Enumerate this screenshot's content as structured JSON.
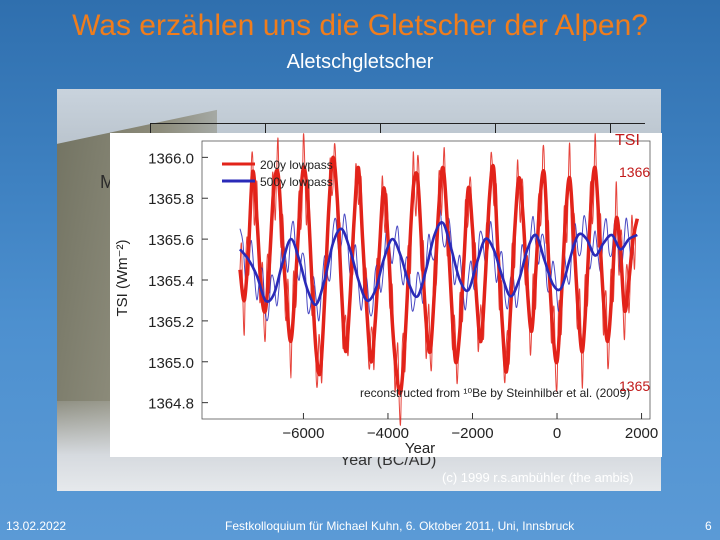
{
  "slide": {
    "title": "Was erzählen uns die Gletscher der Alpen?",
    "subtitle": "Aletschgletscher",
    "footer_left": "13.02.2022",
    "footer_center": "Festkolloquium für Michael Kuhn, 6. Oktober 2011, Uni, Innsbruck",
    "footer_right": "6",
    "photo_credit": "(c) 1999 r.s.ambühler (the ambis)",
    "background_axis_label": "Year (BC/AD)",
    "background_letter": "M"
  },
  "colors": {
    "title": "#f07d1c",
    "red_series": "#e2231a",
    "blue_series": "#2a2ab8",
    "right_axis": "#c21a1a"
  },
  "chart_data": {
    "type": "line",
    "title": "",
    "xlabel": "Year",
    "ylabel": "TSI (Wm⁻²)",
    "xlim": [
      -8400,
      2200
    ],
    "ylim": [
      1364.72,
      1366.08
    ],
    "x_ticks": [
      -6000,
      -4000,
      -2000,
      0,
      2000
    ],
    "x_tick_labels": [
      "−6000",
      "−4000",
      "−2000",
      "0",
      "2000"
    ],
    "y_ticks": [
      1364.8,
      1365.0,
      1365.2,
      1365.4,
      1365.6,
      1365.8,
      1366.0
    ],
    "y_tick_labels": [
      "1364.8",
      "1365.0",
      "1365.2",
      "1365.4",
      "1365.6",
      "1365.8",
      "1366.0"
    ],
    "right_axis": {
      "label": "TSI",
      "ticks": [
        "1366",
        "1365"
      ]
    },
    "annotation": "reconstructed from ¹⁰Be by Steinhilber et al. (2009)",
    "legend": [
      {
        "name": "200y lowpass",
        "color": "#e2231a"
      },
      {
        "name": "500y lowpass",
        "color": "#2a2ab8"
      }
    ],
    "series": [
      {
        "name": "200y lowpass",
        "style": "thick",
        "color": "#e2231a",
        "x": [
          -7500,
          -7400,
          -7300,
          -7200,
          -7100,
          -7000,
          -6900,
          -6800,
          -6700,
          -6600,
          -6500,
          -6400,
          -6300,
          -6200,
          -6100,
          -6000,
          -5900,
          -5800,
          -5700,
          -5600,
          -5500,
          -5400,
          -5300,
          -5200,
          -5100,
          -5000,
          -4900,
          -4800,
          -4700,
          -4600,
          -4500,
          -4400,
          -4300,
          -4200,
          -4100,
          -4000,
          -3900,
          -3800,
          -3700,
          -3600,
          -3500,
          -3400,
          -3300,
          -3200,
          -3100,
          -3000,
          -2900,
          -2800,
          -2700,
          -2600,
          -2500,
          -2400,
          -2300,
          -2200,
          -2100,
          -2000,
          -1900,
          -1800,
          -1700,
          -1600,
          -1500,
          -1400,
          -1300,
          -1200,
          -1100,
          -1000,
          -900,
          -800,
          -700,
          -600,
          -500,
          -400,
          -300,
          -200,
          -100,
          0,
          100,
          200,
          300,
          400,
          500,
          600,
          700,
          800,
          900,
          1000,
          1100,
          1200,
          1300,
          1400,
          1500,
          1600,
          1700,
          1800,
          1900
        ],
        "y": [
          1365.45,
          1365.3,
          1365.55,
          1365.93,
          1365.7,
          1365.35,
          1365.25,
          1365.5,
          1365.85,
          1365.92,
          1365.6,
          1365.3,
          1365.1,
          1365.35,
          1365.7,
          1365.95,
          1365.8,
          1365.4,
          1365.05,
          1364.95,
          1365.3,
          1365.75,
          1366.0,
          1365.8,
          1365.35,
          1365.05,
          1365.3,
          1365.7,
          1365.95,
          1365.6,
          1365.25,
          1365.0,
          1365.2,
          1365.55,
          1365.85,
          1365.6,
          1365.2,
          1364.95,
          1364.85,
          1365.1,
          1365.5,
          1365.85,
          1365.9,
          1365.55,
          1365.2,
          1365.05,
          1365.35,
          1365.75,
          1365.95,
          1365.7,
          1365.3,
          1365.0,
          1365.15,
          1365.5,
          1365.85,
          1365.65,
          1365.3,
          1365.1,
          1365.4,
          1365.8,
          1365.95,
          1365.55,
          1365.2,
          1364.95,
          1365.25,
          1365.65,
          1365.9,
          1365.7,
          1365.35,
          1365.15,
          1365.45,
          1365.8,
          1365.92,
          1365.5,
          1365.15,
          1365.0,
          1365.3,
          1365.7,
          1365.9,
          1365.6,
          1365.25,
          1365.05,
          1365.35,
          1365.75,
          1365.95,
          1365.65,
          1365.3,
          1365.1,
          1365.35,
          1365.7,
          1365.55,
          1365.25,
          1365.4,
          1365.6,
          1365.7
        ]
      },
      {
        "name": "500y lowpass",
        "style": "thick",
        "color": "#2a2ab8",
        "x": [
          -7500,
          -7300,
          -7100,
          -6900,
          -6700,
          -6500,
          -6300,
          -6100,
          -5900,
          -5700,
          -5500,
          -5300,
          -5100,
          -4900,
          -4700,
          -4500,
          -4300,
          -4100,
          -3900,
          -3700,
          -3500,
          -3300,
          -3100,
          -2900,
          -2700,
          -2500,
          -2300,
          -2100,
          -1900,
          -1700,
          -1500,
          -1300,
          -1100,
          -900,
          -700,
          -500,
          -300,
          -100,
          100,
          300,
          500,
          700,
          900,
          1100,
          1300,
          1500,
          1700,
          1900
        ],
        "y": [
          1365.55,
          1365.5,
          1365.42,
          1365.3,
          1365.33,
          1365.48,
          1365.6,
          1365.5,
          1365.35,
          1365.28,
          1365.4,
          1365.58,
          1365.65,
          1365.55,
          1365.4,
          1365.3,
          1365.35,
          1365.5,
          1365.6,
          1365.52,
          1365.38,
          1365.32,
          1365.45,
          1365.62,
          1365.68,
          1365.55,
          1365.4,
          1365.35,
          1365.48,
          1365.6,
          1365.55,
          1365.42,
          1365.32,
          1365.4,
          1365.55,
          1365.62,
          1365.5,
          1365.38,
          1365.36,
          1365.5,
          1365.62,
          1365.6,
          1365.52,
          1365.58,
          1365.62,
          1365.55,
          1365.6,
          1365.62
        ]
      }
    ]
  }
}
